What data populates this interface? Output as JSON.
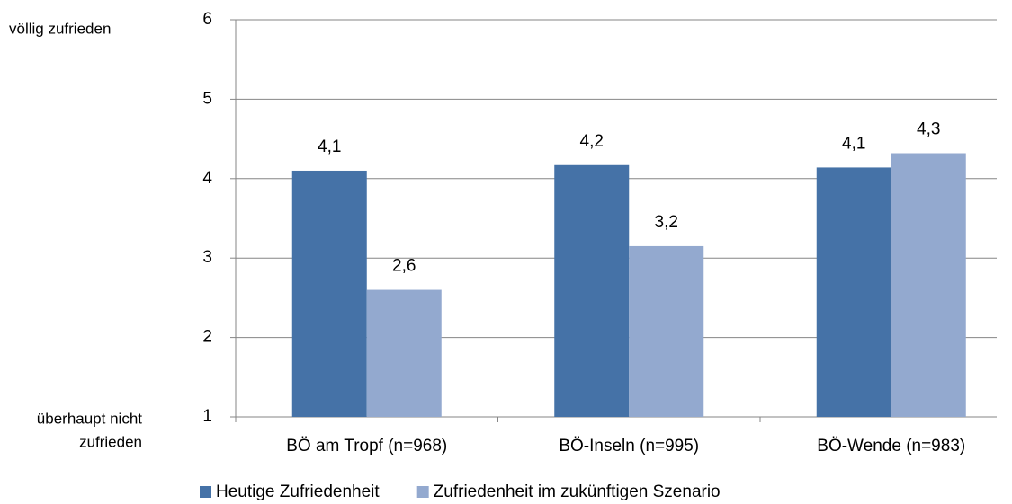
{
  "chart_data": {
    "type": "bar",
    "categories": [
      "BÖ am Tropf (n=968)",
      "BÖ-Inseln (n=995)",
      "BÖ-Wende (n=983)"
    ],
    "series": [
      {
        "name": "Heutige Zufriedenheit",
        "color": "#4572a7",
        "values": [
          4.1,
          4.17,
          4.14
        ],
        "value_labels": [
          "4,1",
          "4,2",
          "4,1"
        ]
      },
      {
        "name": "Zufriedenheit im zukünftigen Szenario",
        "color": "#93a9cf",
        "values": [
          2.6,
          3.15,
          4.32
        ],
        "value_labels": [
          "2,6",
          "3,2",
          "4,3"
        ]
      }
    ],
    "ylim": [
      1,
      6
    ],
    "yticks": [
      1,
      2,
      3,
      4,
      5,
      6
    ],
    "grid": true,
    "legend": "bottom",
    "annotations": [
      {
        "lines": [
          "völlig zufrieden"
        ]
      },
      {
        "lines": [
          "überhaupt nicht",
          "zufrieden"
        ]
      }
    ]
  }
}
